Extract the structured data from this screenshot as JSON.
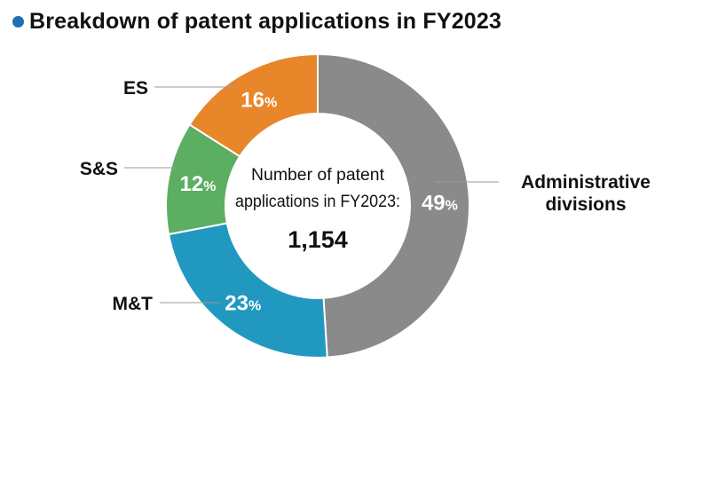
{
  "header": {
    "title": "Breakdown of patent applications in FY2023",
    "bullet_color": "#1f6fb5"
  },
  "chart_data": {
    "type": "pie",
    "title": "Breakdown of patent applications in FY2023",
    "center": {
      "caption_line1": "Number of patent",
      "caption_line2": "applications in FY2023:",
      "total": "1,154"
    },
    "slices": [
      {
        "name": "Administrative divisions",
        "name_lines": [
          "Administrative",
          "divisions"
        ],
        "value": 49,
        "label": "49",
        "unit": "%",
        "color": "#8a8a8a"
      },
      {
        "name": "M&T",
        "name_lines": [
          "M&T"
        ],
        "value": 23,
        "label": "23",
        "unit": "%",
        "color": "#2198bf"
      },
      {
        "name": "S&S",
        "name_lines": [
          "S&S"
        ],
        "value": 12,
        "label": "12",
        "unit": "%",
        "color": "#5cae62"
      },
      {
        "name": "ES",
        "name_lines": [
          "ES"
        ],
        "value": 16,
        "label": "16",
        "unit": "%",
        "color": "#e8862a"
      }
    ]
  }
}
